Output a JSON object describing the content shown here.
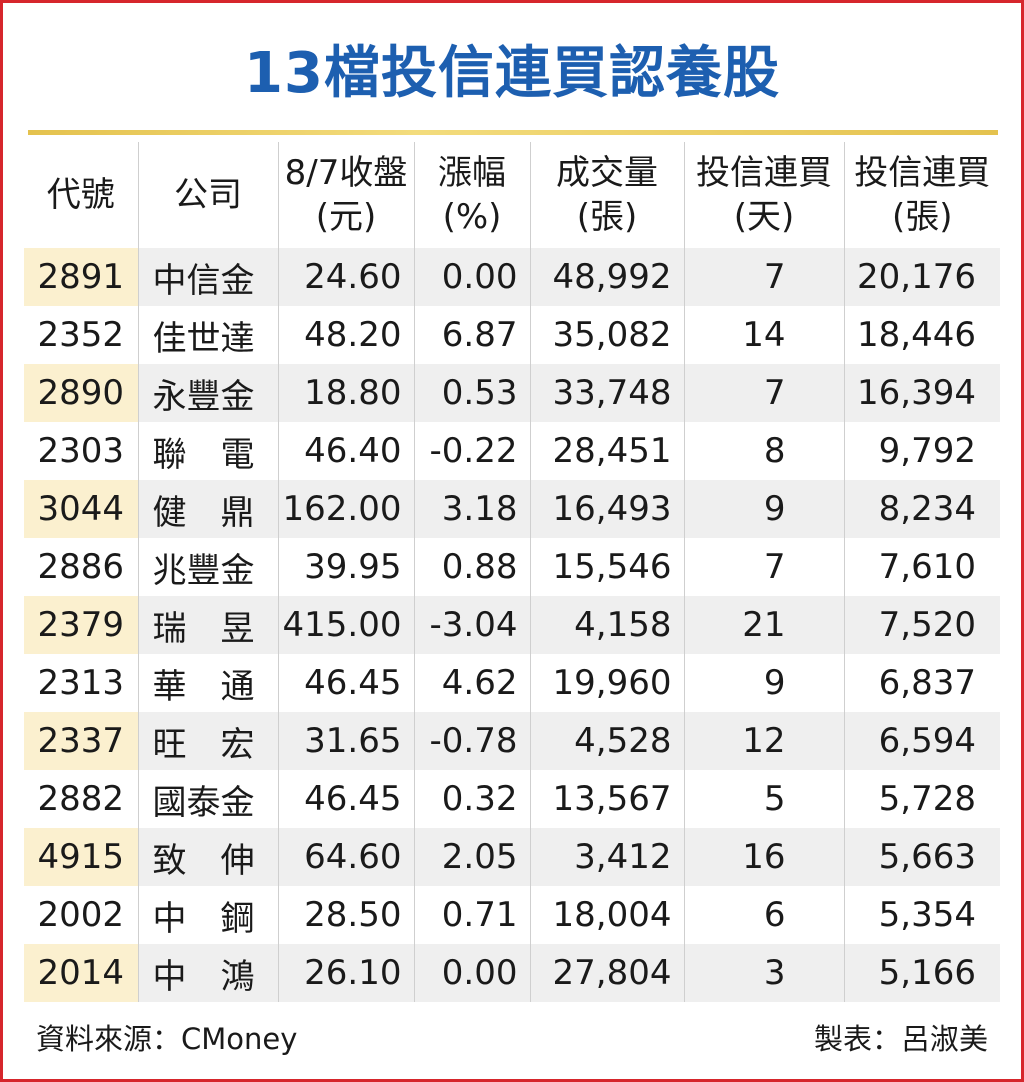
{
  "title": "13檔投信連買認養股",
  "headers": [
    {
      "line1": "代號",
      "line2": ""
    },
    {
      "line1": "公司",
      "line2": ""
    },
    {
      "line1": "8/7收盤",
      "line2": "(元)"
    },
    {
      "line1": "漲幅",
      "line2": "(%)"
    },
    {
      "line1": "成交量",
      "line2": "(張)"
    },
    {
      "line1": "投信連買",
      "line2": "(天)"
    },
    {
      "line1": "投信連買",
      "line2": "(張)"
    }
  ],
  "rows": [
    {
      "code": "2891",
      "company": "中信金",
      "close": "24.60",
      "change": "0.00",
      "volume": "48,992",
      "days": "7",
      "lots": "20,176"
    },
    {
      "code": "2352",
      "company": "佳世達",
      "close": "48.20",
      "change": "6.87",
      "volume": "35,082",
      "days": "14",
      "lots": "18,446"
    },
    {
      "code": "2890",
      "company": "永豐金",
      "close": "18.80",
      "change": "0.53",
      "volume": "33,748",
      "days": "7",
      "lots": "16,394"
    },
    {
      "code": "2303",
      "company": "聯　電",
      "close": "46.40",
      "change": "-0.22",
      "volume": "28,451",
      "days": "8",
      "lots": "9,792"
    },
    {
      "code": "3044",
      "company": "健　鼎",
      "close": "162.00",
      "change": "3.18",
      "volume": "16,493",
      "days": "9",
      "lots": "8,234"
    },
    {
      "code": "2886",
      "company": "兆豐金",
      "close": "39.95",
      "change": "0.88",
      "volume": "15,546",
      "days": "7",
      "lots": "7,610"
    },
    {
      "code": "2379",
      "company": "瑞　昱",
      "close": "415.00",
      "change": "-3.04",
      "volume": "4,158",
      "days": "21",
      "lots": "7,520"
    },
    {
      "code": "2313",
      "company": "華　通",
      "close": "46.45",
      "change": "4.62",
      "volume": "19,960",
      "days": "9",
      "lots": "6,837"
    },
    {
      "code": "2337",
      "company": "旺　宏",
      "close": "31.65",
      "change": "-0.78",
      "volume": "4,528",
      "days": "12",
      "lots": "6,594"
    },
    {
      "code": "2882",
      "company": "國泰金",
      "close": "46.45",
      "change": "0.32",
      "volume": "13,567",
      "days": "5",
      "lots": "5,728"
    },
    {
      "code": "4915",
      "company": "致　伸",
      "close": "64.60",
      "change": "2.05",
      "volume": "3,412",
      "days": "16",
      "lots": "5,663"
    },
    {
      "code": "2002",
      "company": "中　鋼",
      "close": "28.50",
      "change": "0.71",
      "volume": "18,004",
      "days": "6",
      "lots": "5,354"
    },
    {
      "code": "2014",
      "company": "中　鴻",
      "close": "26.10",
      "change": "0.00",
      "volume": "27,804",
      "days": "3",
      "lots": "5,166"
    }
  ],
  "footer": {
    "source": "資料來源：CMoney",
    "maker": "製表：呂淑美"
  },
  "colors": {
    "title": "#1d5fb0",
    "frame": "#d6262c",
    "rule": "#e4c24e",
    "shade_row": "#efefef",
    "shade_code": "#fbf0cf"
  }
}
